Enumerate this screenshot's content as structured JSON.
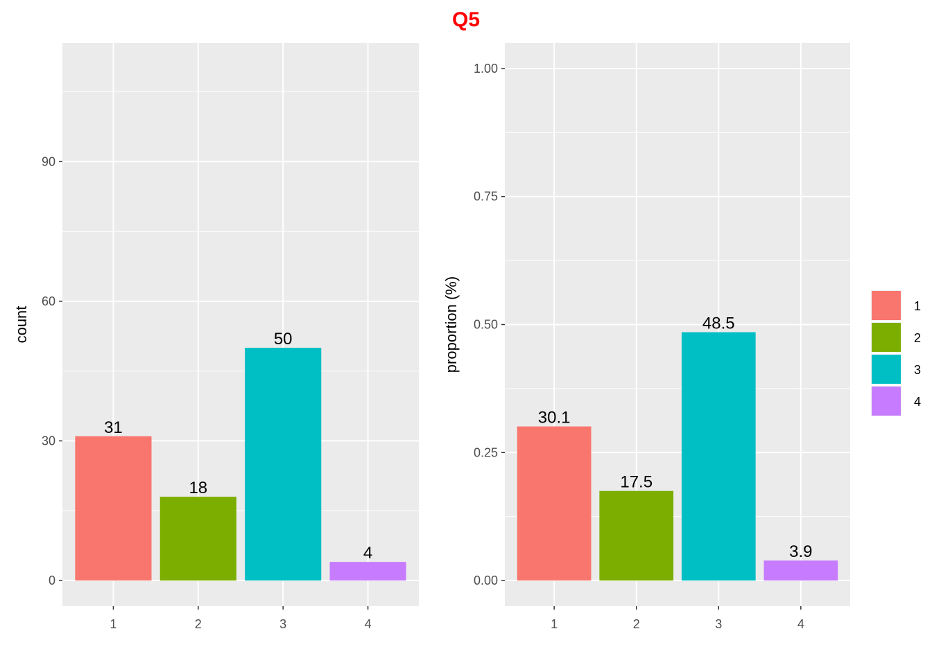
{
  "title": "Q5",
  "title_color": "#FF0000",
  "panel_bg": "#EBEBEB",
  "grid_color": "#FFFFFF",
  "chart_data": [
    {
      "type": "bar",
      "title": "",
      "xlabel": "",
      "ylabel": "count",
      "categories": [
        "1",
        "2",
        "3",
        "4"
      ],
      "values": [
        31,
        18,
        50,
        4
      ],
      "data_labels": [
        "31",
        "18",
        "50",
        "4"
      ],
      "ylim": [
        -5.5,
        115.5
      ],
      "yticks": [
        0,
        30,
        60,
        90
      ],
      "ytick_labels": [
        "0",
        "30",
        "60",
        "90"
      ],
      "colors": [
        "#F8766D",
        "#7CAE00",
        "#00BFC4",
        "#C77CFF"
      ],
      "grid": true
    },
    {
      "type": "bar",
      "title": "",
      "xlabel": "",
      "ylabel": "proportion (%)",
      "categories": [
        "1",
        "2",
        "3",
        "4"
      ],
      "values": [
        0.301,
        0.175,
        0.485,
        0.039
      ],
      "data_labels": [
        "30.1",
        "17.5",
        "48.5",
        "3.9"
      ],
      "ylim": [
        -0.05,
        1.05
      ],
      "yticks": [
        0,
        0.25,
        0.5,
        0.75,
        1.0
      ],
      "ytick_labels": [
        "0.00",
        "0.25",
        "0.50",
        "0.75",
        "1.00"
      ],
      "colors": [
        "#F8766D",
        "#7CAE00",
        "#00BFC4",
        "#C77CFF"
      ],
      "grid": true
    }
  ],
  "legend": {
    "placement": "right",
    "items": [
      {
        "label": "1",
        "color": "#F8766D"
      },
      {
        "label": "2",
        "color": "#7CAE00"
      },
      {
        "label": "3",
        "color": "#00BFC4"
      },
      {
        "label": "4",
        "color": "#C77CFF"
      }
    ]
  }
}
